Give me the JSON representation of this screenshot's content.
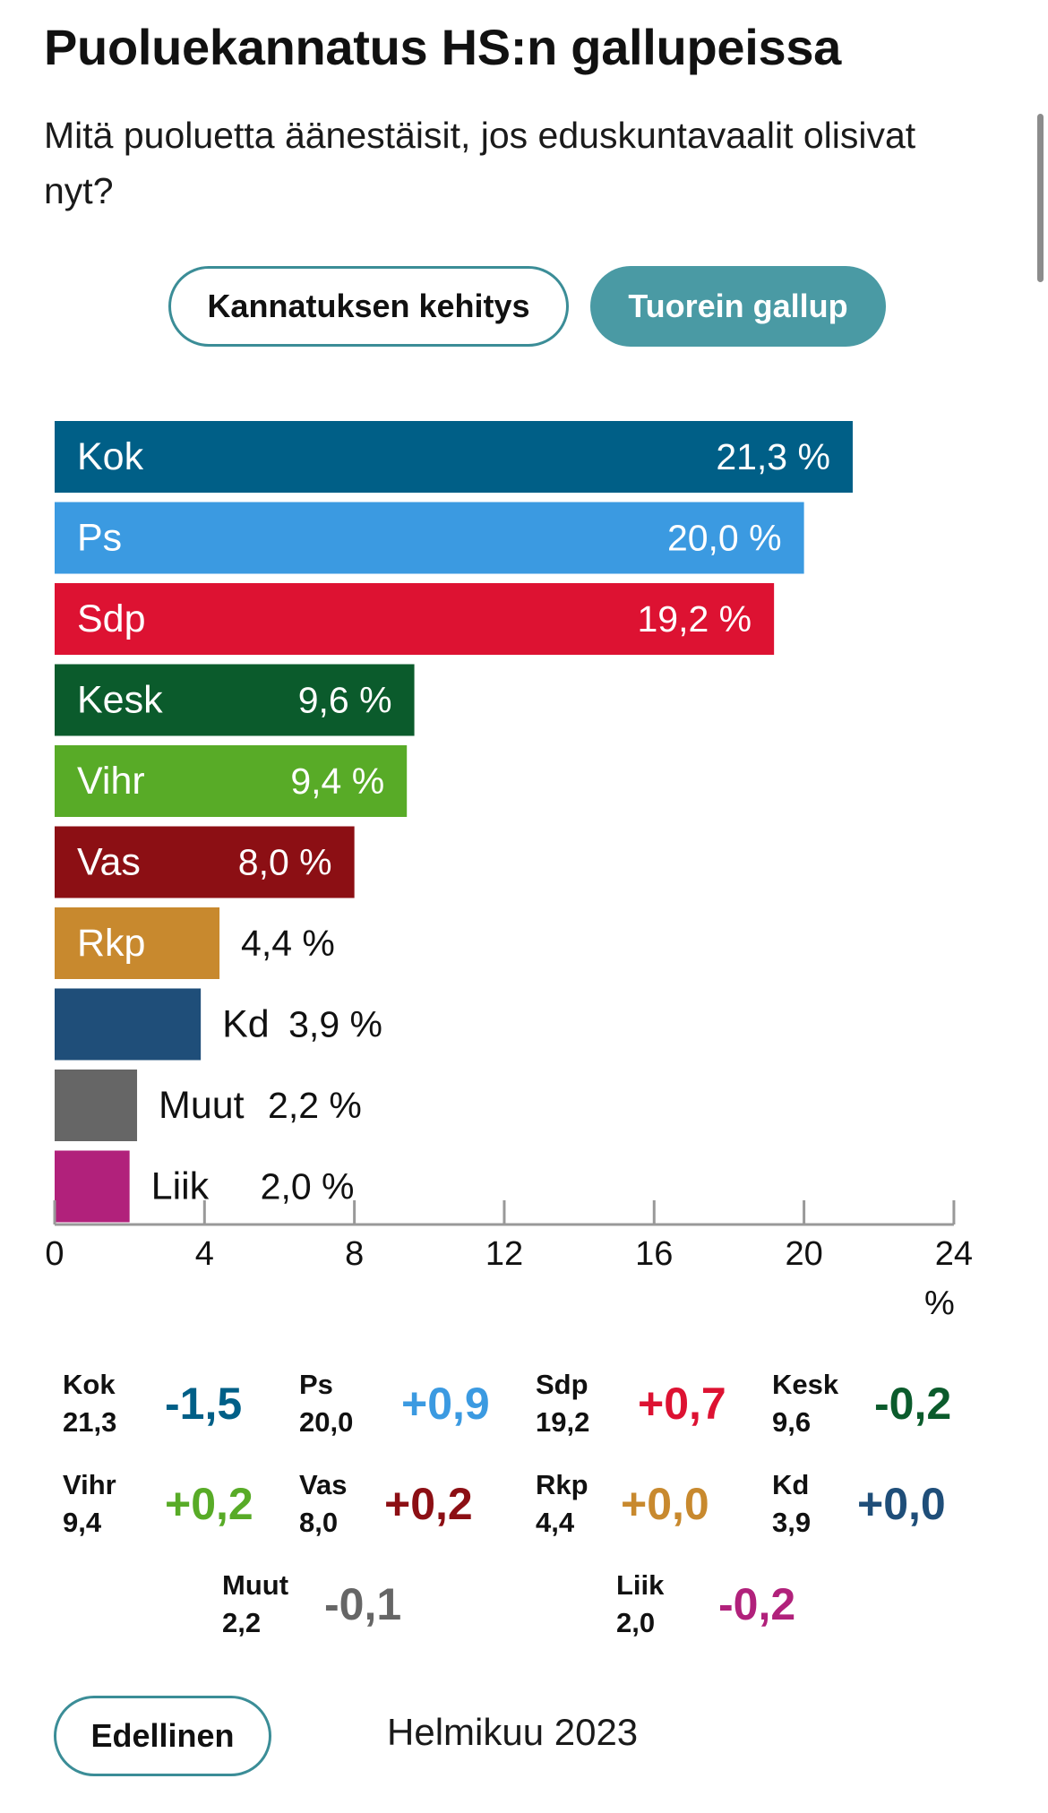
{
  "header": {
    "title": "Puoluekannatus HS:n gallupeissa",
    "subtitle": "Mitä puoluetta äänestäisit, jos eduskuntavaalit olisivat nyt?"
  },
  "tabs": {
    "development_label": "Kannatuksen kehitys",
    "latest_label": "Tuorein gallup"
  },
  "chart_data": {
    "type": "bar",
    "orientation": "horizontal",
    "categories": [
      "Kok",
      "Ps",
      "Sdp",
      "Kesk",
      "Vihr",
      "Vas",
      "Rkp",
      "Kd",
      "Muut",
      "Liik"
    ],
    "values": [
      21.3,
      20.0,
      19.2,
      9.6,
      9.4,
      8.0,
      4.4,
      3.9,
      2.2,
      2.0
    ],
    "value_labels": [
      "21,3 %",
      "20,0 %",
      "19,2 %",
      "9,6 %",
      "9,4 %",
      "8,0 %",
      "4,4 %",
      "3,9 %",
      "2,2 %",
      "2,0 %"
    ],
    "colors": [
      "#005f87",
      "#3b9ae1",
      "#dd1232",
      "#0b5b2c",
      "#58ab27",
      "#8c0f14",
      "#c8892e",
      "#1f4e79",
      "#666666",
      "#b1217b"
    ],
    "xlim": [
      0,
      24
    ],
    "xticks": [
      0,
      4,
      8,
      12,
      16,
      20,
      24
    ],
    "xlabel": "%",
    "grid": false
  },
  "changes": [
    {
      "party": "Kok",
      "value": "21,3",
      "change": "-1,5",
      "color": "#005f87"
    },
    {
      "party": "Ps",
      "value": "20,0",
      "change": "+0,9",
      "color": "#3b9ae1"
    },
    {
      "party": "Sdp",
      "value": "19,2",
      "change": "+0,7",
      "color": "#dd1232"
    },
    {
      "party": "Kesk",
      "value": "9,6",
      "change": "-0,2",
      "color": "#0b5b2c"
    },
    {
      "party": "Vihr",
      "value": "9,4",
      "change": "+0,2",
      "color": "#58ab27"
    },
    {
      "party": "Vas",
      "value": "8,0",
      "change": "+0,2",
      "color": "#8c0f14"
    },
    {
      "party": "Rkp",
      "value": "4,4",
      "change": "+0,0",
      "color": "#c8892e"
    },
    {
      "party": "Kd",
      "value": "3,9",
      "change": "+0,0",
      "color": "#1f4e79"
    },
    {
      "party": "Muut",
      "value": "2,2",
      "change": "-0,1",
      "color": "#666666"
    },
    {
      "party": "Liik",
      "value": "2,0",
      "change": "-0,2",
      "color": "#b1217b"
    }
  ],
  "footer": {
    "previous_label": "Edellinen",
    "period": "Helmikuu 2023"
  }
}
